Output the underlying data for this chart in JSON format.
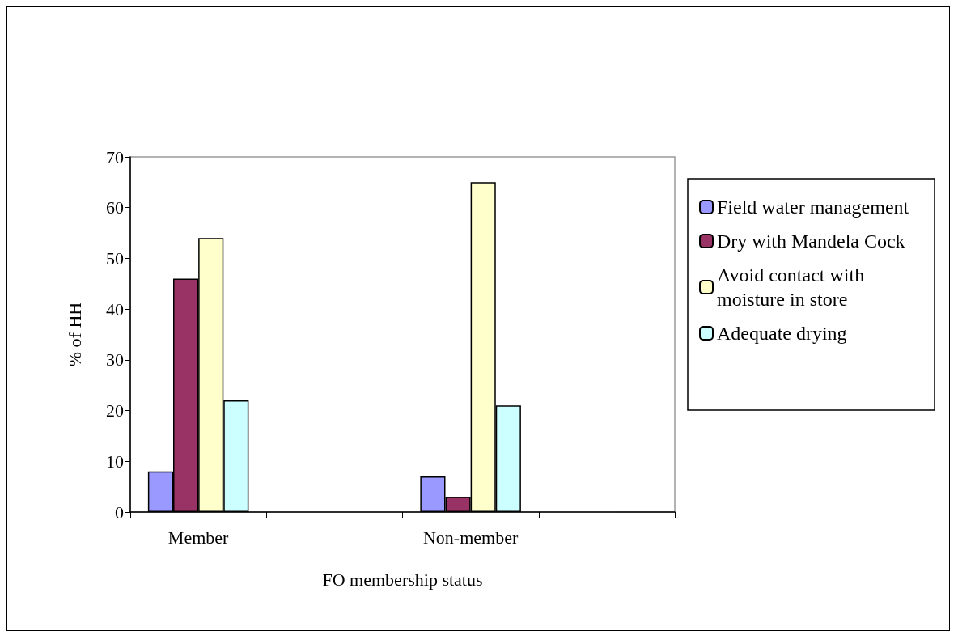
{
  "chart_data": {
    "type": "bar",
    "xlabel": "FO membership status",
    "ylabel": "% of HH",
    "categories": [
      "Member",
      null,
      "Non-member",
      null
    ],
    "series": [
      {
        "name": "Field water management",
        "color": "#9999ff",
        "values": [
          8,
          null,
          7,
          null
        ]
      },
      {
        "name": "Dry with Mandela Cock",
        "color": "#993366",
        "values": [
          46,
          null,
          3,
          null
        ]
      },
      {
        "name": "Avoid contact with moisture in store",
        "color": "#ffffcc",
        "values": [
          54,
          null,
          65,
          null
        ]
      },
      {
        "name": "Adequate drying",
        "color": "#ccffff",
        "values": [
          22,
          null,
          21,
          null
        ]
      }
    ],
    "ylim": [
      0,
      70
    ],
    "yticks": [
      0,
      10,
      20,
      30,
      40,
      50,
      60,
      70
    ],
    "grid": false,
    "legend": "right"
  }
}
